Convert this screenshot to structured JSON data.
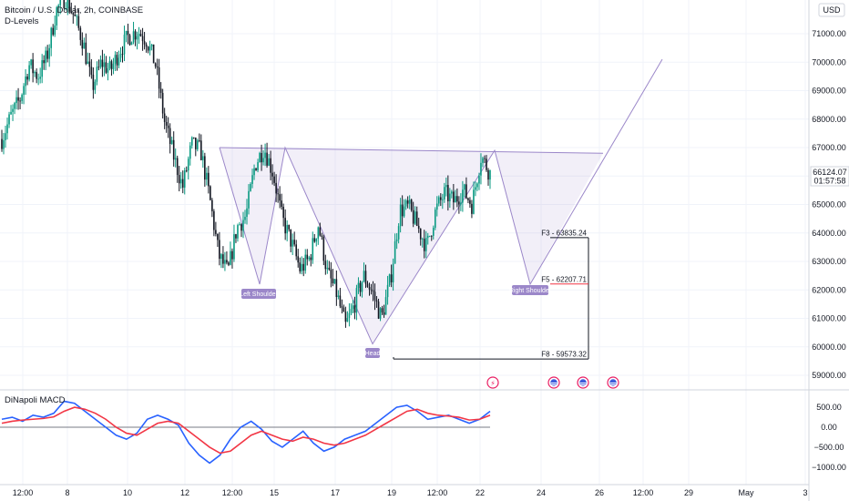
{
  "legend": {
    "title": "Bitcoin / U.S. Dollar, 2h, COINBASE",
    "indicator": "D-Levels"
  },
  "currency_button": "USD",
  "price_badge": {
    "price": "66124.07",
    "countdown": "01:57:58"
  },
  "colors": {
    "up": "#089981",
    "down": "#131722",
    "pattern": "#9b87c9",
    "macd": "#2962ff",
    "signal": "#f23645",
    "level_f5": "#f23645"
  },
  "pattern_labels": {
    "left_shoulder": "Left Shoulder",
    "head": "Head",
    "right_shoulder": "Right Shoulder"
  },
  "levels": [
    {
      "label": "F3 - 63835.24",
      "price": 63835.24,
      "color": "#131722"
    },
    {
      "label": "F5 - 62207.71",
      "price": 62207.71,
      "color": "#f23645"
    },
    {
      "label": "F8 - 59573.32",
      "price": 59573.32,
      "color": "#131722"
    }
  ],
  "macd_panel": {
    "title": "DiNapoli MACD"
  },
  "chart_data": {
    "type": "candlestick",
    "title": "Bitcoin / U.S. Dollar, 2h, COINBASE",
    "y_ticks": [
      59000,
      60000,
      61000,
      62000,
      63000,
      64000,
      65000,
      66000,
      67000,
      68000,
      69000,
      70000,
      71000
    ],
    "y_tick_labels": [
      "59000.00",
      "60000.00",
      "61000.00",
      "62000.00",
      "63000.00",
      "64000.00",
      "65000.00",
      "66000.00",
      "67000.00",
      "68000.00",
      "69000.00",
      "70000.00",
      "71000.00"
    ],
    "ylim": [
      58700,
      72500
    ],
    "x_tick_labels": [
      "12:00",
      "8",
      "10",
      "12",
      "12:00",
      "15",
      "17",
      "19",
      "12:00",
      "22",
      "24",
      "26",
      "12:00",
      "29",
      "May",
      "3"
    ],
    "close_path": [
      67300,
      68100,
      68700,
      69900,
      69500,
      70200,
      71800,
      72300,
      71600,
      70700,
      69100,
      70000,
      69700,
      70400,
      70900,
      71100,
      70800,
      69900,
      67900,
      66700,
      65600,
      67100,
      66900,
      65200,
      63200,
      62600,
      64200,
      64600,
      66400,
      67000,
      66100,
      64500,
      63700,
      62700,
      63100,
      64300,
      62600,
      61900,
      60700,
      61500,
      62500,
      61900,
      61000,
      62400,
      64800,
      64900,
      64200,
      63500,
      64800,
      65400,
      65100,
      65500,
      65000,
      66700,
      66100
    ],
    "macd": [
      200,
      250,
      150,
      300,
      250,
      350,
      650,
      600,
      400,
      200,
      0,
      -200,
      -300,
      -150,
      200,
      300,
      200,
      50,
      -400,
      -700,
      -900,
      -700,
      -300,
      0,
      150,
      -50,
      -350,
      -500,
      -300,
      -100,
      -400,
      -600,
      -500,
      -300,
      -200,
      -100,
      100,
      300,
      500,
      550,
      400,
      200,
      250,
      300,
      200,
      100,
      200,
      400
    ],
    "signal": [
      100,
      150,
      180,
      200,
      220,
      260,
      400,
      500,
      450,
      350,
      200,
      0,
      -150,
      -200,
      -50,
      100,
      150,
      100,
      -100,
      -300,
      -500,
      -650,
      -600,
      -400,
      -200,
      -100,
      -200,
      -300,
      -350,
      -250,
      -300,
      -400,
      -450,
      -400,
      -300,
      -200,
      -50,
      100,
      250,
      400,
      450,
      350,
      300,
      280,
      250,
      180,
      200,
      300
    ],
    "macd_ticks": [
      500,
      0,
      -500,
      -1000
    ],
    "macd_tick_labels": [
      "500.00",
      "0.00",
      "−500.00",
      "−1000.00"
    ],
    "pattern": {
      "shoulders_line": [
        [
          241,
          67000
        ],
        [
          662,
          66800
        ]
      ],
      "zigzag": [
        [
          241,
          67000
        ],
        [
          285,
          62200
        ],
        [
          313,
          67000
        ],
        [
          409,
          60100
        ],
        [
          543,
          66900
        ],
        [
          582,
          62200
        ],
        [
          727,
          70100
        ]
      ]
    }
  }
}
